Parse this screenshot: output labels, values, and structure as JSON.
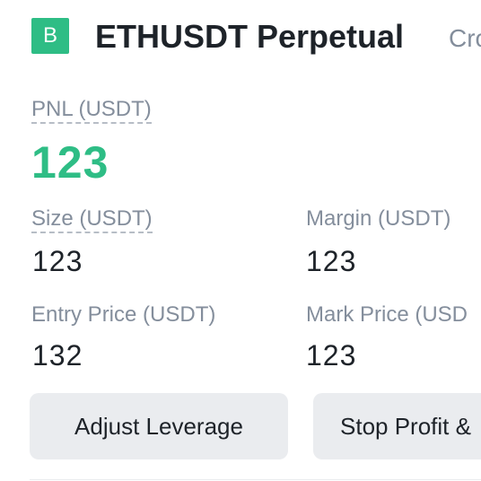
{
  "position": {
    "side_badge": "B",
    "pair_title": "ETHUSDT Perpetual",
    "margin_mode": "Cro",
    "pnl": {
      "label": "PNL (USDT)",
      "value": "123"
    },
    "size": {
      "label": "Size (USDT)",
      "value": "123"
    },
    "margin": {
      "label": "Margin (USDT)",
      "value": "123"
    },
    "entry_price": {
      "label": "Entry Price (USDT)",
      "value": "132"
    },
    "mark_price": {
      "label": "Mark Price (USD",
      "value": "123"
    }
  },
  "actions": {
    "adjust_leverage": "Adjust Leverage",
    "stop_profit": "Stop Profit &"
  },
  "colors": {
    "buy_green": "#2ebd85",
    "text_primary": "#1e2329",
    "text_secondary": "#848e9c",
    "button_bg": "#eaecef"
  }
}
